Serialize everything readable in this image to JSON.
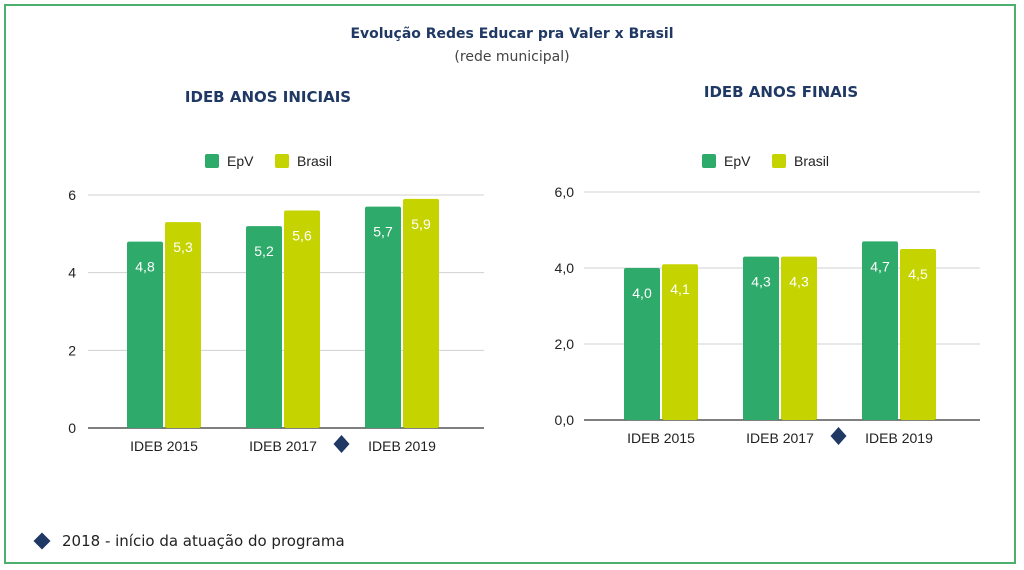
{
  "header": {
    "title": "Evolução Redes Educar pra Valer x Brasil",
    "subtitle": "(rede municipal)"
  },
  "footnote": {
    "text": "2018 - início da atuação do programa",
    "icon": "diamond-icon"
  },
  "colors": {
    "epv": "#2eaa6a",
    "brasil": "#c5d400",
    "grid": "#d0d0d0",
    "axis": "#333333",
    "marker": "#1f3864",
    "frame": "#4caf6e"
  },
  "chart_data": [
    {
      "type": "bar",
      "title": "IDEB ANOS INICIAIS",
      "categories": [
        "IDEB 2015",
        "IDEB 2017",
        "IDEB 2019"
      ],
      "series": [
        {
          "name": "EpV",
          "values": [
            4.8,
            5.2,
            5.7
          ],
          "labels": [
            "4,8",
            "5,2",
            "5,7"
          ]
        },
        {
          "name": "Brasil",
          "values": [
            5.3,
            5.6,
            5.9
          ],
          "labels": [
            "5,3",
            "5,6",
            "5,9"
          ]
        }
      ],
      "ylim": [
        0,
        6
      ],
      "yticks": [
        0,
        2,
        4,
        6
      ],
      "ytick_labels": [
        "0",
        "2",
        "4",
        "6"
      ],
      "grid": true,
      "legend": "top-center",
      "marker": {
        "shape": "diamond",
        "between": [
          "IDEB 2017",
          "IDEB 2019"
        ]
      }
    },
    {
      "type": "bar",
      "title": "IDEB ANOS FINAIS",
      "categories": [
        "IDEB 2015",
        "IDEB 2017",
        "IDEB 2019"
      ],
      "series": [
        {
          "name": "EpV",
          "values": [
            4.0,
            4.3,
            4.7
          ],
          "labels": [
            "4,0",
            "4,3",
            "4,7"
          ]
        },
        {
          "name": "Brasil",
          "values": [
            4.1,
            4.3,
            4.5
          ],
          "labels": [
            "4,1",
            "4,3",
            "4,5"
          ]
        }
      ],
      "ylim": [
        0,
        6
      ],
      "yticks": [
        0,
        2,
        4,
        6
      ],
      "ytick_labels": [
        "0,0",
        "2,0",
        "4,0",
        "6,0"
      ],
      "grid": true,
      "legend": "top-center",
      "marker": {
        "shape": "diamond",
        "between": [
          "IDEB 2017",
          "IDEB 2019"
        ]
      }
    }
  ]
}
